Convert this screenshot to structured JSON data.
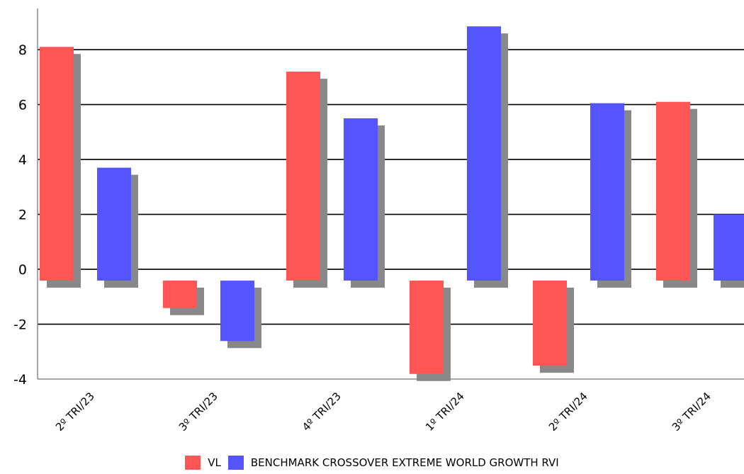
{
  "chart_data": {
    "type": "bar",
    "categories": [
      "2º TRI/23",
      "3º TRI/23",
      "4º TRI/23",
      "1º TRI/24",
      "2º TRI/24",
      "3º TRI/24"
    ],
    "series": [
      {
        "name": "VL",
        "color": "#ff5555",
        "values": [
          8.1,
          -1.0,
          7.2,
          -3.4,
          -3.1,
          6.1
        ]
      },
      {
        "name": "BENCHMARK CROSSOVER EXTREME WORLD GROWTH RVI",
        "color": "#5555ff",
        "values": [
          3.7,
          -2.2,
          5.5,
          8.85,
          6.05,
          2.0
        ]
      }
    ],
    "yticks": [
      "8",
      "6",
      "4",
      "2",
      "0",
      "-2",
      "-4"
    ],
    "ylim": [
      -4,
      9.5
    ],
    "grid": true,
    "legend_position": "bottom",
    "shadow_color": "#888888"
  }
}
